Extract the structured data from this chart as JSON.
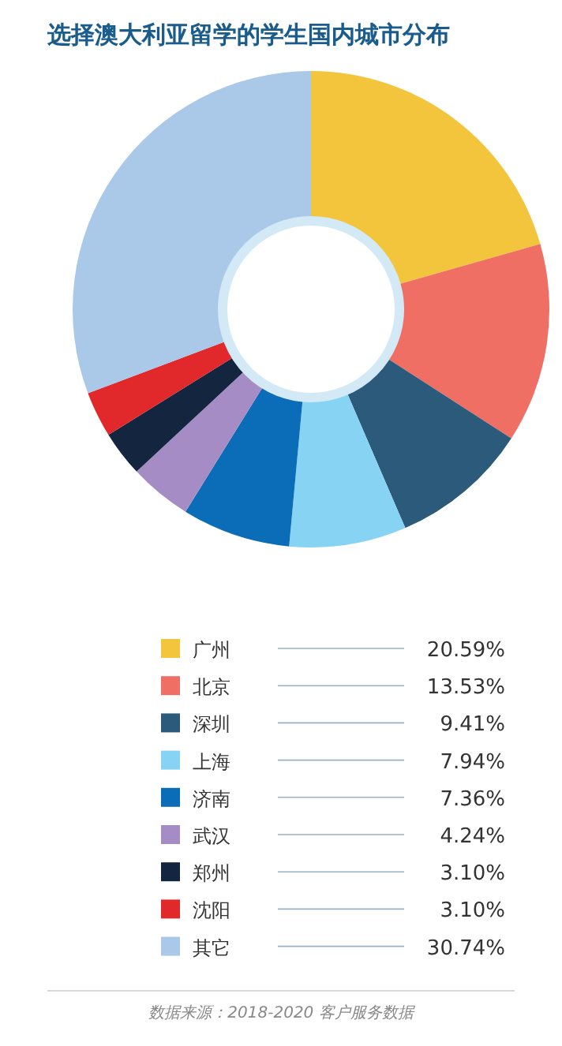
{
  "chart_data": {
    "type": "donut",
    "title": "选择澳大利亚留学的学生国内城市分布",
    "categories": [
      "广州",
      "北京",
      "深圳",
      "上海",
      "济南",
      "武汉",
      "郑州",
      "沈阳",
      "其它"
    ],
    "values": [
      20.59,
      13.53,
      9.41,
      7.94,
      7.36,
      4.24,
      3.1,
      3.1,
      30.74
    ],
    "value_labels": [
      "20.59%",
      "13.53%",
      "9.41%",
      "7.94%",
      "7.36%",
      "4.24%",
      "3.10%",
      "3.10%",
      "30.74%"
    ],
    "colors": [
      "#f2c53d",
      "#f06f64",
      "#2b5a7b",
      "#86d3f3",
      "#0b6db8",
      "#a68cc5",
      "#14263f",
      "#e1282b",
      "#aac9e9"
    ],
    "legend": "bottom",
    "annotations": [
      "数据来源：2018-2020 客户服务数据"
    ]
  }
}
